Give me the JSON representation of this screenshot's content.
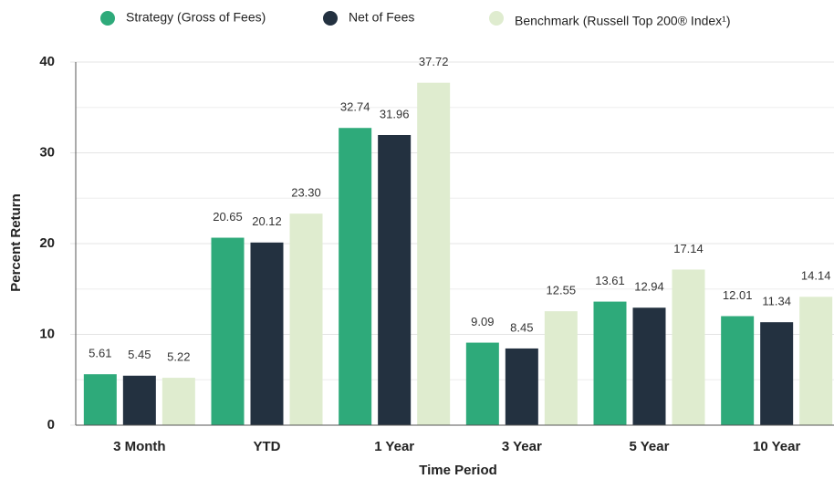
{
  "chart_data": {
    "type": "bar",
    "categories": [
      "3 Month",
      "YTD",
      "1 Year",
      "3 Year",
      "5 Year",
      "10 Year"
    ],
    "series": [
      {
        "name": "Strategy (Gross of Fees)",
        "color": "#2eaa7a",
        "values": [
          5.61,
          20.65,
          32.74,
          9.09,
          13.61,
          12.01
        ],
        "value_labels": [
          "5.61",
          "20.65",
          "32.74",
          "9.09",
          "13.61",
          "12.01"
        ]
      },
      {
        "name": "Net of Fees",
        "color": "#233140",
        "values": [
          5.45,
          20.12,
          31.96,
          8.45,
          12.94,
          11.34
        ],
        "value_labels": [
          "5.45",
          "20.12",
          "31.96",
          "8.45",
          "12.94",
          "11.34"
        ]
      },
      {
        "name": "Benchmark (Russell Top 200® Index¹)",
        "color": "#dfeccf",
        "values": [
          5.22,
          23.3,
          37.72,
          12.55,
          17.14,
          14.14
        ],
        "value_labels": [
          "5.22",
          "23.30",
          "37.72",
          "12.55",
          "17.14",
          "14.14"
        ]
      }
    ],
    "xlabel": "Time Period",
    "ylabel": "Percent Return",
    "ylim": [
      0,
      40
    ],
    "yticks": [
      0,
      10,
      20,
      30,
      40
    ],
    "minor_yticks": [
      5,
      15,
      25,
      35
    ],
    "grid": true,
    "legend": "top"
  }
}
